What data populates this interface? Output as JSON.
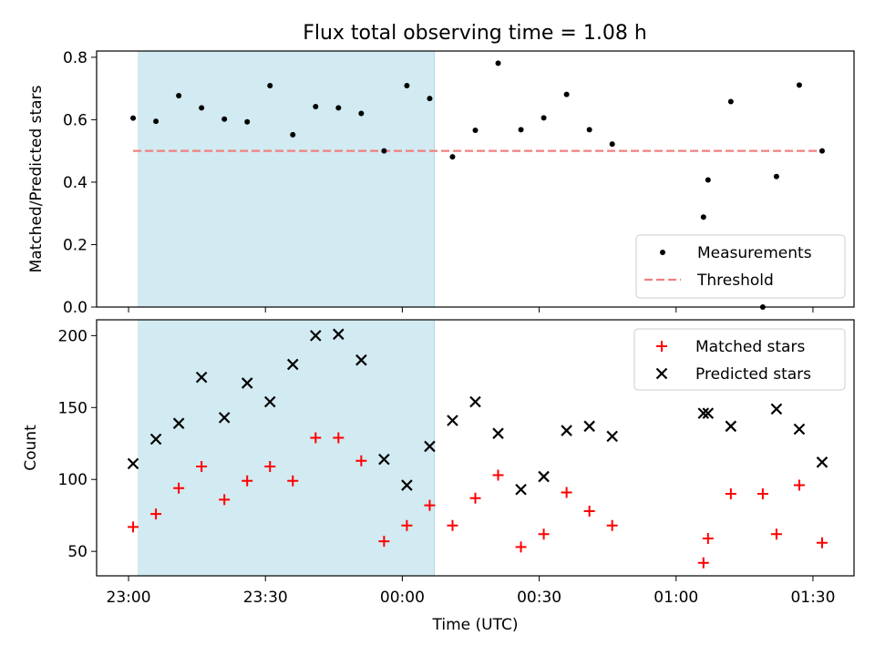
{
  "title": "Flux total observing time = 1.08 h",
  "colors": {
    "shade": "#add8e6",
    "threshold": "#f08080",
    "matched": "#ff0000",
    "predicted": "#000000",
    "measure": "#000000"
  },
  "chart_data": [
    {
      "type": "scatter",
      "panel": "top",
      "ylabel": "Matched/Predicted stars",
      "ylim": [
        0,
        0.82
      ],
      "yticks": [
        0.0,
        0.2,
        0.4,
        0.6,
        0.8
      ],
      "ytick_labels": [
        "0.0",
        "0.2",
        "0.4",
        "0.6",
        "0.8"
      ],
      "shaded_span_minutes": [
        2,
        67
      ],
      "threshold": 0.5,
      "legend": {
        "position": "lower-right",
        "measurements_label": "Measurements",
        "threshold_label": "Threshold"
      },
      "series": [
        {
          "name": "Measurements",
          "x_minutes": [
            1,
            6,
            11,
            16,
            21,
            26,
            31,
            36,
            41,
            46,
            51,
            56,
            61,
            66,
            71,
            76,
            81,
            86,
            91,
            96,
            101,
            106,
            126,
            127,
            132,
            139,
            142,
            147,
            152
          ],
          "values": [
            0.605,
            0.595,
            0.677,
            0.638,
            0.602,
            0.593,
            0.709,
            0.552,
            0.642,
            0.638,
            0.62,
            0.5,
            0.709,
            0.668,
            0.481,
            0.566,
            0.781,
            0.568,
            0.606,
            0.681,
            0.568,
            0.522,
            0.288,
            0.407,
            0.658,
            0.0,
            0.418,
            0.711,
            0.5
          ]
        }
      ]
    },
    {
      "type": "scatter",
      "panel": "bottom",
      "ylabel": "Count",
      "xlabel": "Time (UTC)",
      "ylim": [
        33,
        211
      ],
      "yticks": [
        50,
        100,
        150,
        200
      ],
      "ytick_labels": [
        "50",
        "100",
        "150",
        "200"
      ],
      "xlim_minutes": [
        -7,
        159
      ],
      "xticks_minutes": [
        0,
        30,
        60,
        90,
        120,
        150
      ],
      "xtick_labels": [
        "23:00",
        "23:30",
        "00:00",
        "00:30",
        "01:00",
        "01:30"
      ],
      "shaded_span_minutes": [
        2,
        67
      ],
      "legend": {
        "position": "upper-right",
        "matched_label": "Matched stars",
        "predicted_label": "Predicted stars"
      },
      "series": [
        {
          "name": "Matched stars",
          "x_minutes": [
            1,
            6,
            11,
            16,
            21,
            26,
            31,
            36,
            41,
            46,
            51,
            56,
            61,
            66,
            71,
            76,
            81,
            86,
            91,
            96,
            101,
            106,
            126,
            127,
            132,
            139,
            142,
            147,
            152
          ],
          "values": [
            67,
            76,
            94,
            109,
            86,
            99,
            109,
            99,
            129,
            129,
            113,
            57,
            68,
            82,
            68,
            87,
            103,
            53,
            62,
            91,
            78,
            68,
            42,
            59,
            90,
            90,
            62,
            96,
            56
          ]
        },
        {
          "name": "Predicted stars",
          "x_minutes": [
            1,
            6,
            11,
            16,
            21,
            26,
            31,
            36,
            41,
            46,
            51,
            56,
            61,
            66,
            71,
            76,
            81,
            86,
            91,
            96,
            101,
            106,
            126,
            127,
            132,
            142,
            147,
            152
          ],
          "values": [
            111,
            128,
            139,
            171,
            143,
            167,
            154,
            180,
            200,
            201,
            183,
            114,
            96,
            123,
            141,
            154,
            132,
            93,
            102,
            134,
            137,
            130,
            146,
            146,
            137,
            149,
            135,
            112
          ]
        }
      ]
    }
  ]
}
